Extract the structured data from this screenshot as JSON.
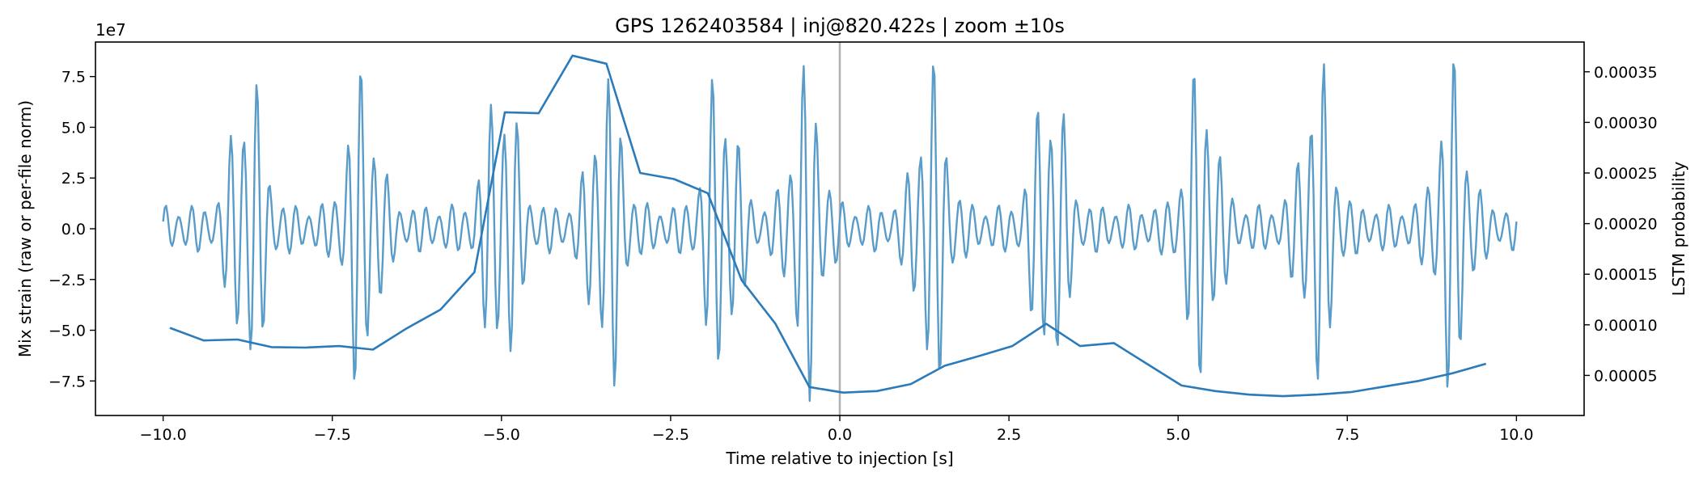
{
  "chart_data": {
    "type": "line",
    "title": "GPS 1262403584 | inj@820.422s | zoom ±10s",
    "xlabel": "Time relative to injection [s]",
    "ylabel_left": "Mix strain (raw or per-file norm)",
    "ylabel_right": "LSTM probability",
    "left_axis_offset_text": "1e7",
    "xlim": [
      -11,
      11
    ],
    "ylim_left": [
      -9.2,
      9.2
    ],
    "ylim_right": [
      1.04e-05,
      0.0003794
    ],
    "x_ticks": [
      -10,
      -7.5,
      -5,
      -2.5,
      0,
      2.5,
      5,
      7.5,
      10
    ],
    "x_tick_labels": [
      "−10.0",
      "−7.5",
      "−5.0",
      "−2.5",
      "0.0",
      "2.5",
      "5.0",
      "7.5",
      "10.0"
    ],
    "y_left_ticks": [
      -7.5,
      -5,
      -2.5,
      0,
      2.5,
      5,
      7.5
    ],
    "y_left_tick_labels": [
      "−7.5",
      "−5.0",
      "−2.5",
      "0.0",
      "2.5",
      "5.0",
      "7.5"
    ],
    "y_right_ticks": [
      5e-05,
      0.0001,
      0.00015,
      0.0002,
      0.00025,
      0.0003,
      0.00035
    ],
    "y_right_tick_labels": [
      "0.00005",
      "0.00010",
      "0.00015",
      "0.00020",
      "0.00025",
      "0.00030",
      "0.00035"
    ],
    "injection_line_x": 0,
    "strain_series": {
      "name": "Mix strain",
      "color": "#5a9cc9",
      "x_range": [
        -10,
        10
      ],
      "n_samples": 900,
      "carrier_cycles_per_s": 5.2,
      "burst_period_s": 1.69,
      "burst_peaks_s": [
        -8.75,
        -7.05,
        -5.0,
        -3.45,
        -1.75,
        -0.5,
        1.35,
        3.1,
        5.35,
        7.05,
        9.05
      ],
      "burst_amplitude": 8.0,
      "baseline_amplitude": 1.2
    },
    "lstm_series": {
      "name": "LSTM probability",
      "color": "#2b7bba",
      "x": [
        -9.9,
        -9.4,
        -8.9,
        -8.4,
        -7.9,
        -7.4,
        -6.9,
        -6.4,
        -5.9,
        -5.4,
        -4.95,
        -4.45,
        -3.95,
        -3.45,
        -2.95,
        -2.45,
        -1.95,
        -1.45,
        -0.95,
        -0.45,
        0.05,
        0.55,
        1.05,
        1.55,
        2.05,
        2.55,
        3.05,
        3.55,
        4.05,
        4.55,
        5.05,
        5.55,
        6.05,
        6.55,
        7.05,
        7.55,
        8.05,
        8.55,
        9.05,
        9.55
      ],
      "y": [
        9.7e-05,
        8.45e-05,
        8.55e-05,
        7.8e-05,
        7.75e-05,
        7.9e-05,
        7.55e-05,
        9.65e-05,
        0.000115,
        0.000152,
        0.00031,
        0.000309,
        0.000366,
        0.000358,
        0.00025,
        0.000244,
        0.00023,
        0.000144,
        0.000101,
        3.85e-05,
        3.3e-05,
        3.45e-05,
        4.15e-05,
        5.95e-05,
        6.9e-05,
        7.9e-05,
        0.000101,
        7.9e-05,
        8.2e-05,
        6.1e-05,
        4e-05,
        3.45e-05,
        3.1e-05,
        2.95e-05,
        3.1e-05,
        3.35e-05,
        3.9e-05,
        4.45e-05,
        5.2e-05,
        6.15e-05
      ]
    }
  }
}
